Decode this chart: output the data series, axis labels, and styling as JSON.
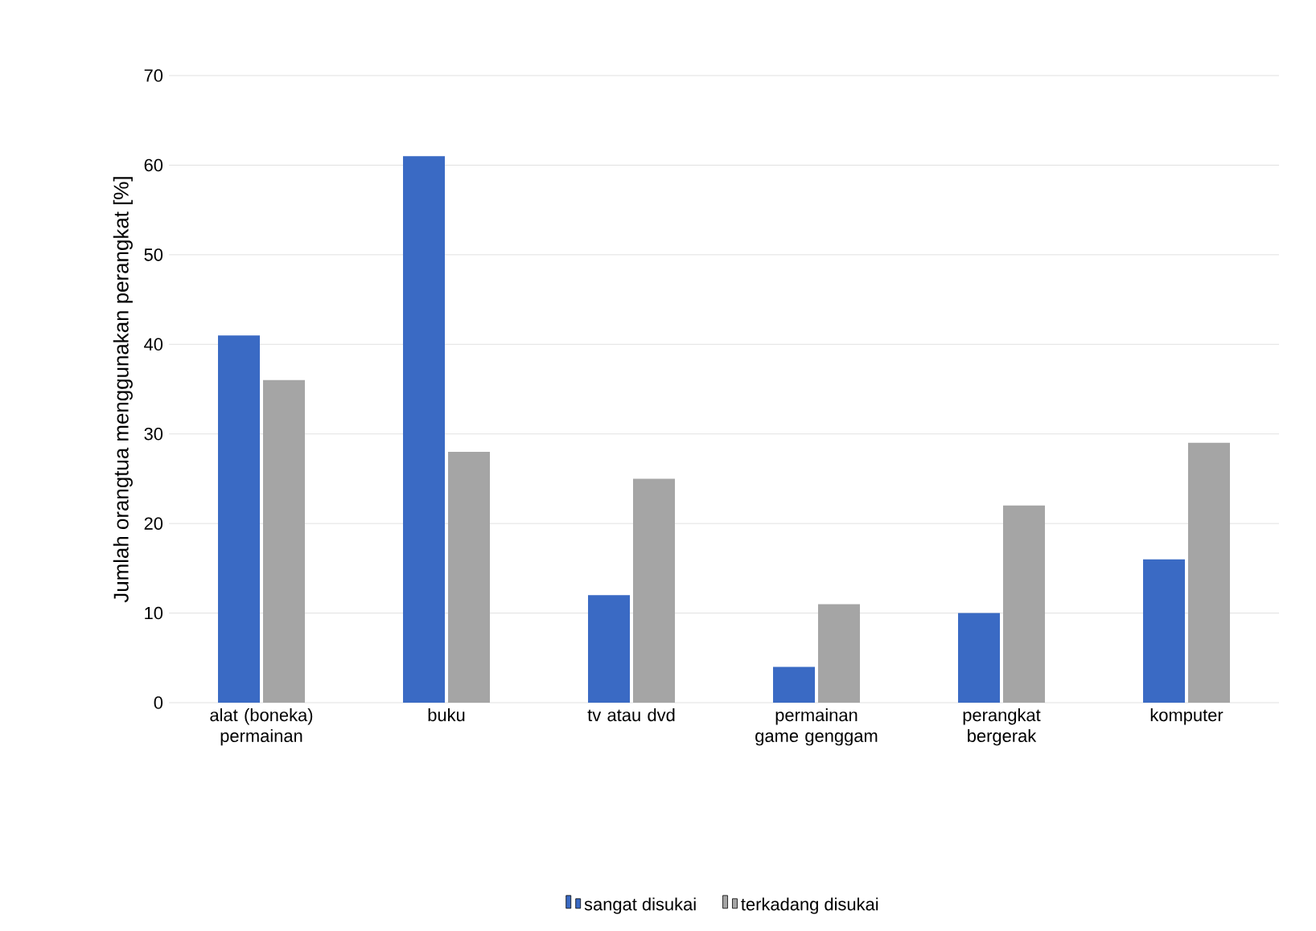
{
  "chart_data": {
    "type": "bar",
    "ylabel": "Jumlah orangtua menggunakan perangkat [%]",
    "categories": [
      "alat (boneka) permainan",
      "buku",
      "tv atau dvd",
      "permainan game genggam",
      "perangkat bergerak",
      "komputer"
    ],
    "series": [
      {
        "name": "sangat disukai",
        "color": "#3a6ac4",
        "values": [
          41,
          61,
          12,
          4,
          10,
          16
        ]
      },
      {
        "name": "terkadang disukai",
        "color": "#a5a5a5",
        "values": [
          36,
          28,
          25,
          11,
          22,
          29
        ]
      }
    ],
    "ylim": [
      0,
      70
    ],
    "yticks": [
      0,
      10,
      20,
      30,
      40,
      50,
      60,
      70
    ],
    "grid": "y",
    "legend": "bottom"
  }
}
